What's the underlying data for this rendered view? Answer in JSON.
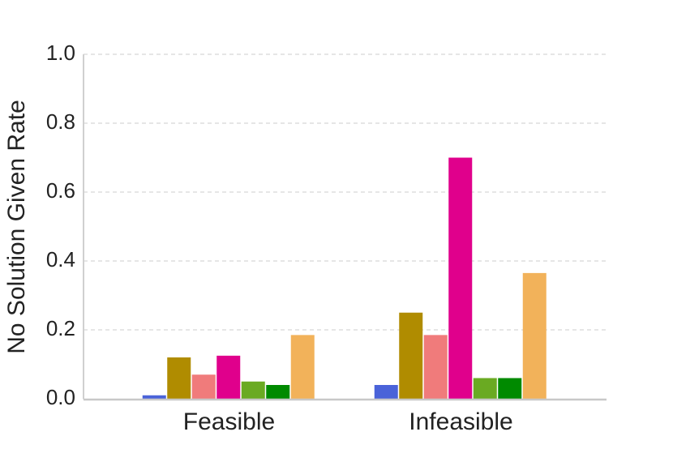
{
  "chart_data": {
    "type": "bar",
    "y_label": "No Solution Given Rate",
    "categories": [
      "Feasible",
      "Infeasible"
    ],
    "series": [
      {
        "color": "#4a63d9",
        "values": [
          0.01,
          0.04
        ]
      },
      {
        "color": "#b08c00",
        "values": [
          0.12,
          0.25
        ]
      },
      {
        "color": "#f07b7b",
        "values": [
          0.07,
          0.185
        ]
      },
      {
        "color": "#e0008c",
        "values": [
          0.125,
          0.7
        ]
      },
      {
        "color": "#6aaa22",
        "values": [
          0.05,
          0.06
        ]
      },
      {
        "color": "#008a00",
        "values": [
          0.04,
          0.06
        ]
      },
      {
        "color": "#f2b25a",
        "values": [
          0.185,
          0.365
        ]
      }
    ],
    "ylim": [
      0,
      1
    ],
    "yticks": [
      {
        "value": 0,
        "label": "0.0"
      },
      0.2,
      0.4,
      0.6,
      0.8,
      {
        "value": 1,
        "label": "1.0"
      }
    ],
    "grid": true
  }
}
